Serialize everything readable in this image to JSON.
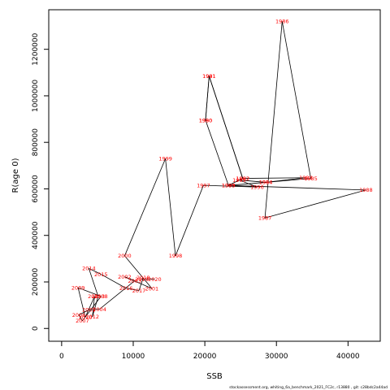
{
  "chart_data": {
    "type": "line",
    "title": "",
    "xlabel": "SSB",
    "ylabel": "R(age 0)",
    "xlim": [
      -1800,
      44500
    ],
    "ylim": [
      -55000,
      1370000
    ],
    "xticks": [
      0,
      10000,
      20000,
      30000,
      40000
    ],
    "yticks": [
      0,
      200000,
      400000,
      600000,
      800000,
      1000000,
      1200000
    ],
    "grid": false,
    "legend": "none",
    "line_color": "#000000",
    "label_color": "#ff0000",
    "points": [
      {
        "year": "1986",
        "ssb": 30800,
        "rec": 1320000
      },
      {
        "year": "1985",
        "ssb": 34800,
        "rec": 645000
      },
      {
        "year": "1984",
        "ssb": 28500,
        "rec": 628000
      },
      {
        "year": "1983",
        "ssb": 34100,
        "rec": 648000
      },
      {
        "year": "1982",
        "ssb": 25300,
        "rec": 645000
      },
      {
        "year": "1981",
        "ssb": 20600,
        "rec": 1085000
      },
      {
        "year": "1980",
        "ssb": 20100,
        "rec": 895000
      },
      {
        "year": "1989",
        "ssb": 23300,
        "rec": 615000
      },
      {
        "year": "1988",
        "ssb": 42500,
        "rec": 595000
      },
      {
        "year": "1987",
        "ssb": 28400,
        "rec": 475000
      },
      {
        "year": "1999",
        "ssb": 14500,
        "rec": 730000
      },
      {
        "year": "1998",
        "ssb": 15900,
        "rec": 312000
      },
      {
        "year": "1997",
        "ssb": 19800,
        "rec": 615000
      },
      {
        "year": "1996",
        "ssb": 27300,
        "rec": 608000
      },
      {
        "year": "1995",
        "ssb": 24800,
        "rec": 638000
      },
      {
        "year": "2000",
        "ssb": 8800,
        "rec": 312000
      },
      {
        "year": "2001",
        "ssb": 12600,
        "rec": 172000
      },
      {
        "year": "2002",
        "ssb": 8800,
        "rec": 222000
      },
      {
        "year": "2003",
        "ssb": 10200,
        "rec": 205000
      },
      {
        "year": "2004",
        "ssb": 5300,
        "rec": 83000
      },
      {
        "year": "2005",
        "ssb": 3800,
        "rec": 80000
      },
      {
        "year": "2006",
        "ssb": 2400,
        "rec": 58000
      },
      {
        "year": "2007",
        "ssb": 2900,
        "rec": 33000
      },
      {
        "year": "2008",
        "ssb": 5500,
        "rec": 138000
      },
      {
        "year": "2009",
        "ssb": 2300,
        "rec": 175000
      },
      {
        "year": "2010",
        "ssb": 3300,
        "rec": 48000
      },
      {
        "year": "2011",
        "ssb": 4600,
        "rec": 138000
      },
      {
        "year": "2012",
        "ssb": 4300,
        "rec": 50000
      },
      {
        "year": "2013",
        "ssb": 5100,
        "rec": 138000
      },
      {
        "year": "2014",
        "ssb": 3800,
        "rec": 258000
      },
      {
        "year": "2015",
        "ssb": 5500,
        "rec": 233000
      },
      {
        "year": "2016",
        "ssb": 9000,
        "rec": 173000
      },
      {
        "year": "2017",
        "ssb": 10800,
        "rec": 163000
      },
      {
        "year": "2018",
        "ssb": 11400,
        "rec": 218000
      },
      {
        "year": "2019",
        "ssb": 11200,
        "rec": 212000
      },
      {
        "year": "2020",
        "ssb": 13000,
        "rec": 212000
      }
    ],
    "path_order": [
      "1980",
      "1981",
      "1982",
      "1983",
      "1984",
      "1985",
      "1986",
      "1987",
      "1988",
      "1989",
      "1990",
      "1991",
      "1992",
      "1993",
      "1994",
      "1995",
      "1996",
      "1997",
      "1998",
      "1999",
      "2000",
      "2001",
      "2002",
      "2003",
      "2004",
      "2005",
      "2006",
      "2007",
      "2008",
      "2009",
      "2010",
      "2011",
      "2012",
      "2013",
      "2014",
      "2015",
      "2016",
      "2017",
      "2018",
      "2019",
      "2020"
    ],
    "extra_labels": [
      {
        "year": "1990",
        "ssb": 20100,
        "rec": 895000
      },
      {
        "year": "1991",
        "ssb": 20600,
        "rec": 1085000
      },
      {
        "year": "1992",
        "ssb": 25300,
        "rec": 645000
      },
      {
        "year": "1993",
        "ssb": 23300,
        "rec": 615000
      },
      {
        "year": "1994",
        "ssb": 28500,
        "rec": 628000
      }
    ]
  },
  "footer": "stockassessment.org, whiting_6a_benchmark_2021_FC2c, r13880 , git: c28bdc2a44ad"
}
